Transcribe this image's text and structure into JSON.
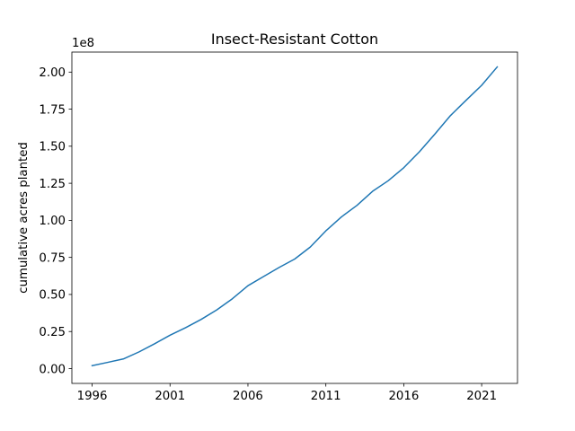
{
  "chart_data": {
    "type": "line",
    "title": "Insect-Resistant Cotton",
    "xlabel": "",
    "ylabel": "cumulative acres planted",
    "y_offset_text": "1e8",
    "y_scale": 100000000,
    "x": [
      1996,
      1997,
      1998,
      1999,
      2000,
      2001,
      2002,
      2003,
      2004,
      2005,
      2006,
      2007,
      2008,
      2009,
      2010,
      2011,
      2012,
      2013,
      2014,
      2015,
      2016,
      2017,
      2018,
      2019,
      2020,
      2021,
      2022
    ],
    "series": [
      {
        "color": "#1f77b4",
        "values": [
          2000000,
          4200000,
          6500000,
          11200000,
          16700000,
          22500000,
          27600000,
          33200000,
          39600000,
          47100000,
          55900000,
          62100000,
          68200000,
          73900000,
          82000000,
          92900000,
          102300000,
          110100000,
          119600000,
          126700000,
          135500000,
          146200000,
          158200000,
          170700000,
          181000000,
          191100000,
          203500000
        ]
      }
    ],
    "xlim": [
      1994.7,
      2023.3
    ],
    "ylim": [
      -10000000,
      213500000
    ],
    "xticks": [
      1996,
      2001,
      2006,
      2011,
      2016,
      2021
    ],
    "xtick_labels": [
      "1996",
      "2001",
      "2006",
      "2011",
      "2016",
      "2021"
    ],
    "yticks": [
      0,
      25000000,
      50000000,
      75000000,
      100000000,
      125000000,
      150000000,
      175000000,
      200000000
    ],
    "ytick_labels": [
      "0.00",
      "0.25",
      "0.50",
      "0.75",
      "1.00",
      "1.25",
      "1.50",
      "1.75",
      "2.00"
    ],
    "grid": false,
    "legend": false
  }
}
